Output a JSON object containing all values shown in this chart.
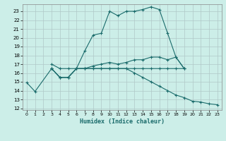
{
  "xlabel": "Humidex (Indice chaleur)",
  "background_color": "#cceee8",
  "grid_color": "#b0c8c8",
  "line_color": "#1a6b6b",
  "xlim": [
    -0.5,
    23.5
  ],
  "ylim": [
    11.8,
    23.8
  ],
  "yticks": [
    12,
    13,
    14,
    15,
    16,
    17,
    18,
    19,
    20,
    21,
    22,
    23
  ],
  "xticks": [
    0,
    1,
    2,
    3,
    4,
    5,
    6,
    7,
    8,
    9,
    10,
    11,
    12,
    13,
    14,
    15,
    16,
    17,
    18,
    19,
    20,
    21,
    22,
    23
  ],
  "series": [
    {
      "x": [
        0,
        1,
        3,
        4,
        5,
        6,
        7,
        8,
        9,
        10,
        11,
        12,
        13,
        14,
        15,
        16,
        17,
        18,
        19
      ],
      "y": [
        14.9,
        13.9,
        16.5,
        15.5,
        15.5,
        16.5,
        18.5,
        20.3,
        20.5,
        23.0,
        22.5,
        23.0,
        23.0,
        23.2,
        23.5,
        23.2,
        20.5,
        17.8,
        16.5
      ]
    },
    {
      "x": [
        3,
        4,
        5,
        6,
        7,
        8,
        9,
        10,
        11,
        12,
        13,
        14,
        15,
        16,
        17,
        18,
        19
      ],
      "y": [
        17.0,
        16.5,
        16.5,
        16.5,
        16.5,
        16.5,
        16.5,
        16.5,
        16.5,
        16.5,
        16.5,
        16.5,
        16.5,
        16.5,
        16.5,
        16.5,
        16.5
      ]
    },
    {
      "x": [
        3,
        4,
        5,
        6,
        7,
        8,
        9,
        10,
        11,
        12,
        13,
        14,
        15,
        16,
        17,
        18,
        19
      ],
      "y": [
        16.5,
        15.5,
        15.5,
        16.5,
        16.5,
        16.8,
        17.0,
        17.2,
        17.0,
        17.2,
        17.5,
        17.5,
        17.8,
        17.8,
        17.5,
        17.8,
        16.5
      ]
    },
    {
      "x": [
        3,
        4,
        5,
        6,
        7,
        8,
        9,
        10,
        11,
        12,
        13,
        14,
        15,
        16,
        17,
        18,
        19,
        20,
        21,
        22,
        23
      ],
      "y": [
        16.5,
        15.5,
        15.5,
        16.5,
        16.5,
        16.5,
        16.5,
        16.5,
        16.5,
        16.5,
        16.0,
        15.5,
        15.0,
        14.5,
        14.0,
        13.5,
        13.2,
        12.8,
        12.7,
        12.5,
        12.4
      ]
    }
  ]
}
